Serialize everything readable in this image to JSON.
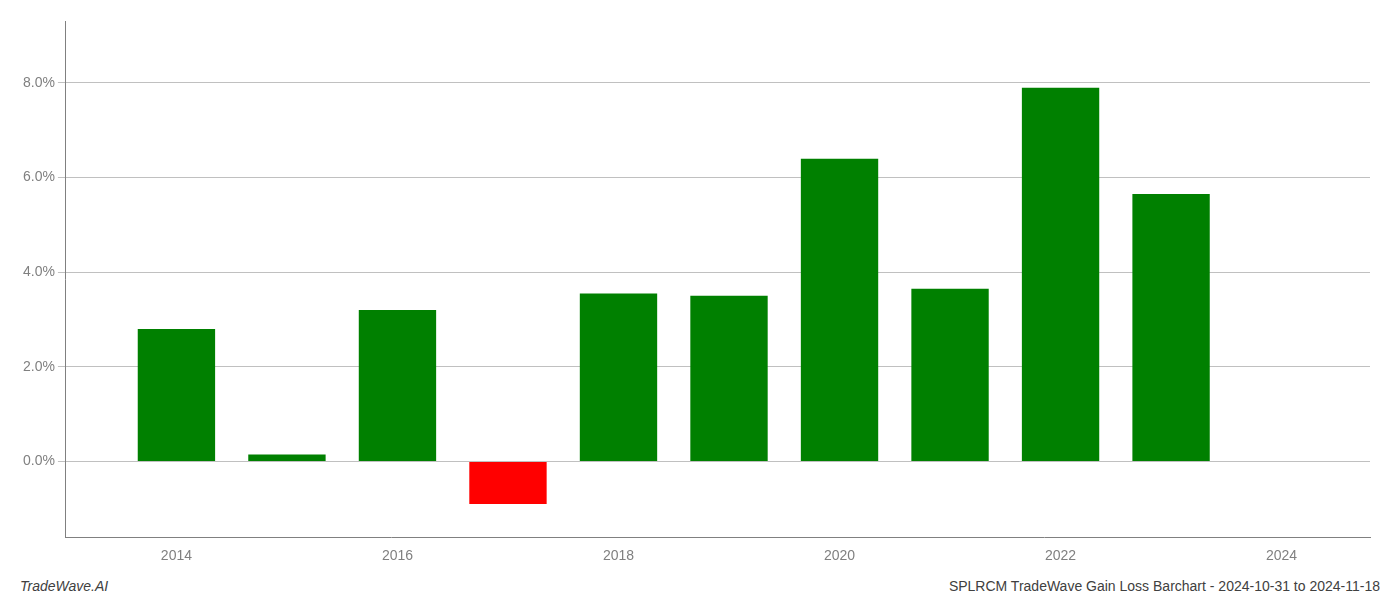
{
  "chart_data": {
    "type": "bar",
    "x": [
      2014,
      2015,
      2016,
      2017,
      2018,
      2019,
      2020,
      2021,
      2022,
      2023
    ],
    "values": [
      0.028,
      0.0015,
      0.032,
      -0.009,
      0.0355,
      0.035,
      0.064,
      0.0365,
      0.079,
      0.0565
    ],
    "colors": [
      "#008000",
      "#008000",
      "#008000",
      "#ff0000",
      "#008000",
      "#008000",
      "#008000",
      "#008000",
      "#008000",
      "#008000"
    ],
    "xlim": [
      2013.0,
      2024.8
    ],
    "xticks": [
      2014,
      2016,
      2018,
      2020,
      2022,
      2024
    ],
    "ylim": [
      -0.016,
      0.093
    ],
    "yticks": [
      {
        "value": 0.0,
        "label": "0.0%"
      },
      {
        "value": 0.02,
        "label": "2.0%"
      },
      {
        "value": 0.04,
        "label": "4.0%"
      },
      {
        "value": 0.06,
        "label": "6.0%"
      },
      {
        "value": 0.08,
        "label": "8.0%"
      }
    ],
    "grid": true,
    "annotations": [
      "TradeWave.AI",
      "SPLRCM TradeWave Gain Loss Barchart - 2024-10-31 to 2024-11-18"
    ]
  }
}
